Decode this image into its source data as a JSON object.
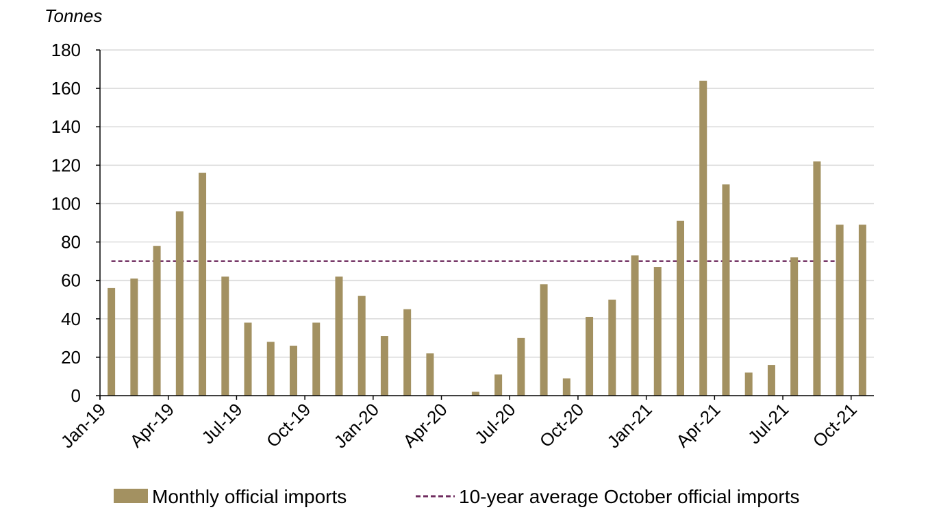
{
  "chart_data": {
    "type": "bar",
    "y_unit_label": "Tonnes",
    "ylim": [
      0,
      180
    ],
    "y_ticks": [
      0,
      20,
      40,
      60,
      80,
      100,
      120,
      140,
      160,
      180
    ],
    "grid": true,
    "categories": [
      "Jan-19",
      "Feb-19",
      "Mar-19",
      "Apr-19",
      "May-19",
      "Jun-19",
      "Jul-19",
      "Aug-19",
      "Sep-19",
      "Oct-19",
      "Nov-19",
      "Dec-19",
      "Jan-20",
      "Feb-20",
      "Mar-20",
      "Apr-20",
      "May-20",
      "Jun-20",
      "Jul-20",
      "Aug-20",
      "Sep-20",
      "Oct-20",
      "Nov-20",
      "Dec-20",
      "Jan-21",
      "Feb-21",
      "Mar-21",
      "Apr-21",
      "May-21",
      "Jun-21",
      "Jul-21",
      "Aug-21",
      "Sep-21",
      "Oct-21"
    ],
    "x_tick_labels": [
      "Jan-19",
      "Apr-19",
      "Jul-19",
      "Oct-19",
      "Jan-20",
      "Apr-20",
      "Jul-20",
      "Oct-20",
      "Jan-21",
      "Apr-21",
      "Jul-21",
      "Oct-21"
    ],
    "series": [
      {
        "name": "Monthly official imports",
        "kind": "bar",
        "color": "#a39161",
        "values": [
          56,
          61,
          78,
          96,
          116,
          62,
          38,
          28,
          26,
          38,
          62,
          52,
          31,
          45,
          22,
          0,
          2,
          11,
          30,
          58,
          9,
          41,
          50,
          73,
          67,
          91,
          164,
          110,
          12,
          16,
          72,
          122,
          89,
          89
        ]
      },
      {
        "name": "10-year average October official imports",
        "kind": "dashed-line",
        "color": "#6f2c5f",
        "value": 70,
        "x_range": [
          "Jan-19",
          "Sep-21"
        ]
      }
    ],
    "legend_position": "bottom-center"
  }
}
